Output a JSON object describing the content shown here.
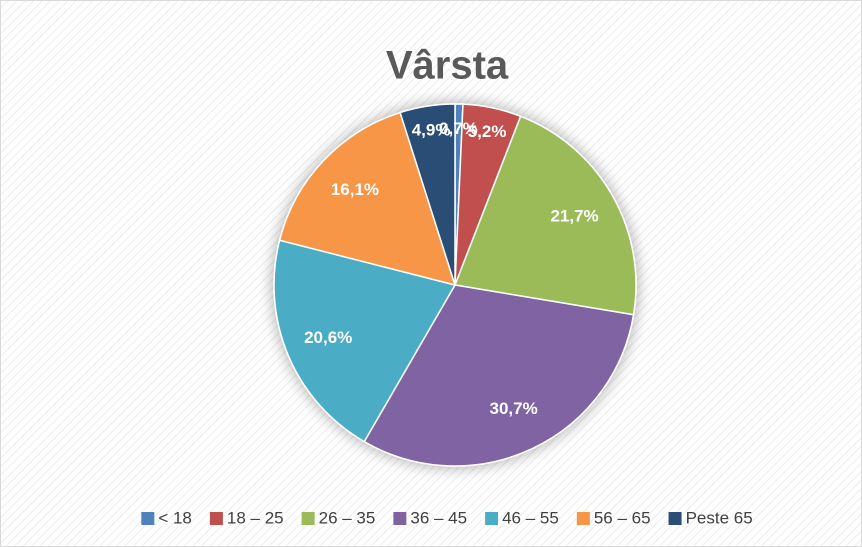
{
  "chart_data": {
    "type": "pie",
    "title": "Vârsta",
    "categories": [
      "< 18",
      "18 – 25",
      "26 – 35",
      "36 – 45",
      "46 – 55",
      "56 – 65",
      "Peste 65"
    ],
    "values": [
      0.7,
      5.2,
      21.7,
      30.7,
      20.6,
      16.1,
      4.9
    ],
    "value_labels": [
      "0,7%",
      "5,2%",
      "21,7%",
      "30,7%",
      "20,6%",
      "16,1%",
      "4,9%"
    ],
    "colors": [
      "#4f81bd",
      "#c0504d",
      "#9bbb59",
      "#8064a2",
      "#4bacc6",
      "#f79646",
      "#2c4d75"
    ],
    "legend": "bottom"
  }
}
